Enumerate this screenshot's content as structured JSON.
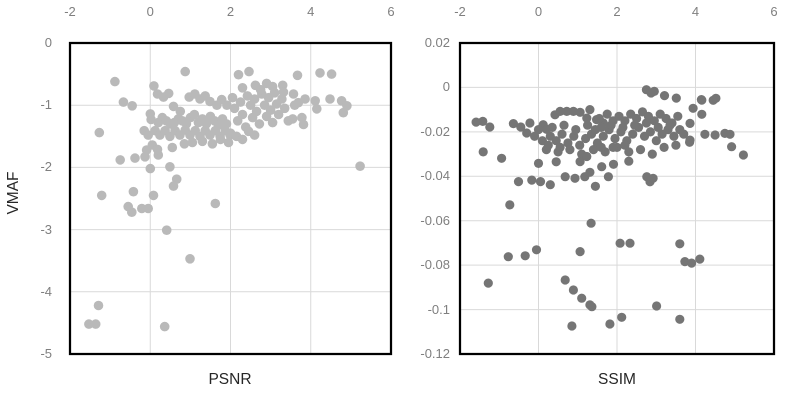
{
  "figure": {
    "background": "#ffffff",
    "grid_color": "#d9d9d9",
    "frame_color": "#000000",
    "tick_color": "#7f7f7f",
    "title_color": "#262626"
  },
  "chart_data": [
    {
      "type": "scatter",
      "title": "",
      "xlabel": "PSNR",
      "ylabel": "VMAF",
      "xlim": [
        -2,
        6
      ],
      "ylim": [
        -5,
        0
      ],
      "x_axis_position": "top",
      "grid": true,
      "legend": "none",
      "point_color": "#b9b9b9",
      "point_radius": 4.8,
      "x_ticks": [
        {
          "v": -2,
          "label": "-2"
        },
        {
          "v": 0,
          "label": "0"
        },
        {
          "v": 2,
          "label": "2"
        },
        {
          "v": 4,
          "label": "4"
        },
        {
          "v": 6,
          "label": "6"
        }
      ],
      "y_ticks": [
        {
          "v": 0,
          "label": "0"
        },
        {
          "v": -1,
          "label": "-1"
        },
        {
          "v": -2,
          "label": "-2"
        },
        {
          "v": -3,
          "label": "-3"
        },
        {
          "v": -4,
          "label": "-4"
        },
        {
          "v": -5,
          "label": "-5"
        }
      ],
      "x_gridlines": [
        0,
        2,
        4
      ],
      "y_gridlines": [
        -1,
        -2,
        -3,
        -4
      ],
      "points": [
        [
          -1.53,
          -4.52
        ],
        [
          -1.36,
          -4.52
        ],
        [
          -1.29,
          -4.22
        ],
        [
          0.36,
          -4.56
        ],
        [
          0.99,
          -3.47
        ],
        [
          0.41,
          -3.01
        ],
        [
          -0.55,
          -2.63
        ],
        [
          -0.46,
          -2.72
        ],
        [
          -0.21,
          -2.66
        ],
        [
          -0.05,
          -2.66
        ],
        [
          1.62,
          -2.58
        ],
        [
          -1.21,
          -2.45
        ],
        [
          -0.42,
          -2.39
        ],
        [
          0.08,
          -2.45
        ],
        [
          -0.75,
          -1.88
        ],
        [
          -0.38,
          -1.85
        ],
        [
          -0.13,
          -1.83
        ],
        [
          0.2,
          -1.8
        ],
        [
          0.0,
          -2.02
        ],
        [
          0.49,
          -1.99
        ],
        [
          0.66,
          -2.19
        ],
        [
          0.58,
          -2.3
        ],
        [
          5.23,
          -1.98
        ],
        [
          -1.27,
          -1.44
        ],
        [
          -0.67,
          -0.95
        ],
        [
          -0.45,
          -1.01
        ],
        [
          -0.88,
          -0.62
        ],
        [
          0.87,
          -0.46
        ],
        [
          2.2,
          -0.51
        ],
        [
          2.46,
          -0.46
        ],
        [
          3.67,
          -0.52
        ],
        [
          4.23,
          -0.48
        ],
        [
          4.52,
          -0.5
        ],
        [
          4.77,
          -0.93
        ],
        [
          4.9,
          -1.01
        ],
        [
          4.81,
          -1.12
        ],
        [
          0.09,
          -0.69
        ],
        [
          0.18,
          -0.82
        ],
        [
          0.33,
          -0.87
        ],
        [
          0.46,
          -0.81
        ],
        [
          0.58,
          -1.02
        ],
        [
          0.75,
          -1.1
        ],
        [
          0.97,
          -0.87
        ],
        [
          1.11,
          -0.82
        ],
        [
          1.24,
          -0.9
        ],
        [
          1.37,
          -0.85
        ],
        [
          1.49,
          -0.94
        ],
        [
          1.66,
          -1.0
        ],
        [
          1.78,
          -0.91
        ],
        [
          1.91,
          -1.0
        ],
        [
          0.0,
          -1.14
        ],
        [
          0.02,
          -1.23
        ],
        [
          0.3,
          -1.2
        ],
        [
          0.2,
          -1.28
        ],
        [
          0.4,
          -1.25
        ],
        [
          0.5,
          -1.3
        ],
        [
          0.6,
          -1.28
        ],
        [
          0.7,
          -1.22
        ],
        [
          0.8,
          -1.25
        ],
        [
          0.9,
          -1.3
        ],
        [
          1.0,
          -1.2
        ],
        [
          1.1,
          -1.15
        ],
        [
          1.2,
          -1.28
        ],
        [
          1.3,
          -1.22
        ],
        [
          1.4,
          -1.3
        ],
        [
          1.5,
          -1.18
        ],
        [
          1.6,
          -1.25
        ],
        [
          1.7,
          -1.32
        ],
        [
          1.8,
          -1.22
        ],
        [
          1.9,
          -1.3
        ],
        [
          -0.15,
          -1.41
        ],
        [
          -0.05,
          -1.48
        ],
        [
          0.12,
          -1.41
        ],
        [
          0.24,
          -1.48
        ],
        [
          0.37,
          -1.41
        ],
        [
          0.49,
          -1.5
        ],
        [
          0.62,
          -1.41
        ],
        [
          0.74,
          -1.48
        ],
        [
          0.87,
          -1.4
        ],
        [
          0.99,
          -1.48
        ],
        [
          1.12,
          -1.41
        ],
        [
          1.24,
          -1.5
        ],
        [
          1.37,
          -1.41
        ],
        [
          1.49,
          -1.48
        ],
        [
          1.62,
          -1.41
        ],
        [
          1.74,
          -1.5
        ],
        [
          1.87,
          -1.41
        ],
        [
          1.99,
          -1.48
        ],
        [
          0.05,
          -1.64
        ],
        [
          0.18,
          -1.71
        ],
        [
          -0.09,
          -1.72
        ],
        [
          0.55,
          -1.68
        ],
        [
          0.85,
          -1.62
        ],
        [
          1.05,
          -1.6
        ],
        [
          1.3,
          -1.58
        ],
        [
          1.55,
          -1.62
        ],
        [
          1.75,
          -1.55
        ],
        [
          1.95,
          -1.6
        ],
        [
          2.05,
          -0.88
        ],
        [
          2.1,
          -1.05
        ],
        [
          2.18,
          -1.25
        ],
        [
          2.25,
          -0.95
        ],
        [
          2.3,
          -1.15
        ],
        [
          2.38,
          -1.35
        ],
        [
          2.42,
          -0.85
        ],
        [
          2.5,
          -1.0
        ],
        [
          2.55,
          -1.2
        ],
        [
          2.6,
          -0.9
        ],
        [
          2.65,
          -1.1
        ],
        [
          2.72,
          -1.3
        ],
        [
          2.78,
          -0.82
        ],
        [
          2.85,
          -1.0
        ],
        [
          2.9,
          -1.18
        ],
        [
          2.95,
          -0.88
        ],
        [
          3.0,
          -1.08
        ],
        [
          3.05,
          -1.28
        ],
        [
          3.1,
          -0.8
        ],
        [
          3.15,
          -0.98
        ],
        [
          3.2,
          -1.15
        ],
        [
          3.28,
          -0.9
        ],
        [
          3.35,
          -1.05
        ],
        [
          3.44,
          -1.25
        ],
        [
          3.55,
          -1.22
        ],
        [
          3.6,
          -1.0
        ],
        [
          2.0,
          -1.45
        ],
        [
          2.15,
          -1.5
        ],
        [
          2.3,
          -1.55
        ],
        [
          2.45,
          -1.42
        ],
        [
          2.6,
          -1.48
        ],
        [
          2.3,
          -0.72
        ],
        [
          2.62,
          -0.68
        ],
        [
          2.9,
          -0.65
        ],
        [
          3.05,
          -0.7
        ],
        [
          3.3,
          -0.68
        ],
        [
          2.75,
          -0.75
        ],
        [
          3.32,
          -0.79
        ],
        [
          3.57,
          -0.82
        ],
        [
          3.69,
          -0.96
        ],
        [
          3.86,
          -0.9
        ],
        [
          4.11,
          -0.93
        ],
        [
          4.15,
          -1.06
        ],
        [
          4.48,
          -0.9
        ],
        [
          3.78,
          -1.2
        ],
        [
          3.82,
          -1.31
        ]
      ]
    },
    {
      "type": "scatter",
      "title": "",
      "xlabel": "SSIM",
      "ylabel": "",
      "xlim": [
        -2,
        6
      ],
      "ylim": [
        -0.12,
        0.02
      ],
      "x_axis_position": "top",
      "grid": true,
      "legend": "none",
      "point_color": "#757575",
      "point_radius": 4.6,
      "x_ticks": [
        {
          "v": -2,
          "label": "-2"
        },
        {
          "v": 0,
          "label": "0"
        },
        {
          "v": 2,
          "label": "2"
        },
        {
          "v": 4,
          "label": "4"
        },
        {
          "v": 6,
          "label": "6"
        }
      ],
      "y_ticks": [
        {
          "v": 0.02,
          "label": "0.02"
        },
        {
          "v": 0,
          "label": "0"
        },
        {
          "v": -0.02,
          "label": "-0.02"
        },
        {
          "v": -0.04,
          "label": "-0.04"
        },
        {
          "v": -0.06,
          "label": "-0.06"
        },
        {
          "v": -0.08,
          "label": "-0.08"
        },
        {
          "v": -0.1,
          "label": "-0.1"
        },
        {
          "v": -0.12,
          "label": "-0.12"
        }
      ],
      "x_gridlines": [
        0,
        2,
        4
      ],
      "y_gridlines": [
        0,
        -0.02,
        -0.04,
        -0.06,
        -0.08,
        -0.1
      ],
      "points": [
        [
          -1.59,
          -0.0156
        ],
        [
          -1.42,
          -0.0153
        ],
        [
          -1.24,
          -0.0178
        ],
        [
          -1.41,
          -0.029
        ],
        [
          -0.94,
          -0.0319
        ],
        [
          -0.64,
          -0.0163
        ],
        [
          -0.45,
          -0.0178
        ],
        [
          -0.22,
          -0.016
        ],
        [
          -0.3,
          -0.0205
        ],
        [
          2.75,
          -0.001
        ],
        [
          2.87,
          -0.0025
        ],
        [
          2.95,
          -0.0018
        ],
        [
          3.21,
          -0.0037
        ],
        [
          3.51,
          -0.0048
        ],
        [
          4.15,
          -0.0055
        ],
        [
          4.45,
          -0.0058
        ],
        [
          3.94,
          -0.0094
        ],
        [
          4.16,
          -0.0057
        ],
        [
          4.52,
          -0.0049
        ],
        [
          4.16,
          -0.0121
        ],
        [
          3.86,
          -0.0162
        ],
        [
          4.24,
          -0.0211
        ],
        [
          4.5,
          -0.0214
        ],
        [
          4.75,
          -0.0207
        ],
        [
          4.88,
          -0.0211
        ],
        [
          3.85,
          -0.0247
        ],
        [
          4.92,
          -0.0267
        ],
        [
          5.22,
          -0.0304
        ],
        [
          3.86,
          -0.0237
        ],
        [
          0.12,
          -0.0168
        ],
        [
          0.21,
          -0.0189
        ],
        [
          0.42,
          -0.0123
        ],
        [
          0.55,
          -0.0108
        ],
        [
          0.72,
          -0.0108
        ],
        [
          0.89,
          -0.0108
        ],
        [
          1.06,
          -0.0112
        ],
        [
          1.23,
          -0.0138
        ],
        [
          1.31,
          -0.01
        ],
        [
          1.48,
          -0.0145
        ],
        [
          1.65,
          -0.016
        ],
        [
          0.3,
          -0.022
        ],
        [
          0.45,
          -0.024
        ],
        [
          0.6,
          -0.021
        ],
        [
          0.75,
          -0.025
        ],
        [
          0.9,
          -0.022
        ],
        [
          1.05,
          -0.026
        ],
        [
          1.2,
          -0.023
        ],
        [
          1.35,
          -0.021
        ],
        [
          1.5,
          -0.025
        ],
        [
          1.65,
          -0.022
        ],
        [
          1.8,
          -0.019
        ],
        [
          1.95,
          -0.023
        ],
        [
          2.1,
          -0.02
        ],
        [
          2.25,
          -0.024
        ],
        [
          2.4,
          -0.021
        ],
        [
          2.55,
          -0.018
        ],
        [
          2.7,
          -0.022
        ],
        [
          2.85,
          -0.02
        ],
        [
          3.0,
          -0.024
        ],
        [
          3.15,
          -0.021
        ],
        [
          3.3,
          -0.019
        ],
        [
          3.45,
          -0.022
        ],
        [
          0.2,
          -0.028
        ],
        [
          0.5,
          -0.029
        ],
        [
          0.8,
          -0.028
        ],
        [
          1.1,
          -0.03
        ],
        [
          1.4,
          -0.028
        ],
        [
          1.7,
          -0.029
        ],
        [
          2.0,
          -0.027
        ],
        [
          2.3,
          -0.029
        ],
        [
          2.6,
          -0.028
        ],
        [
          2.9,
          -0.03
        ],
        [
          1.55,
          -0.014
        ],
        [
          1.75,
          -0.012
        ],
        [
          1.9,
          -0.015
        ],
        [
          2.05,
          -0.013
        ],
        [
          2.2,
          -0.015
        ],
        [
          2.35,
          -0.012
        ],
        [
          2.5,
          -0.014
        ],
        [
          2.65,
          -0.011
        ],
        [
          2.8,
          -0.013
        ],
        [
          2.95,
          -0.015
        ],
        [
          3.1,
          -0.012
        ],
        [
          3.25,
          -0.014
        ],
        [
          3.4,
          -0.016
        ],
        [
          3.55,
          -0.013
        ],
        [
          0.0,
          -0.019
        ],
        [
          -0.1,
          -0.022
        ],
        [
          0.1,
          -0.024
        ],
        [
          0.35,
          -0.018
        ],
        [
          0.65,
          -0.017
        ],
        [
          0.95,
          -0.019
        ],
        [
          1.25,
          -0.017
        ],
        [
          1.45,
          -0.019
        ],
        [
          1.6,
          -0.018
        ],
        [
          1.85,
          -0.017
        ],
        [
          2.15,
          -0.018
        ],
        [
          2.45,
          -0.017
        ],
        [
          2.75,
          -0.016
        ],
        [
          3.05,
          -0.018
        ],
        [
          3.35,
          -0.017
        ],
        [
          3.6,
          -0.019
        ],
        [
          3.7,
          -0.021
        ],
        [
          3.5,
          -0.026
        ],
        [
          3.2,
          -0.027
        ],
        [
          2.2,
          -0.026
        ],
        [
          1.9,
          -0.027
        ],
        [
          1.6,
          -0.027
        ],
        [
          0.55,
          -0.027
        ],
        [
          0.25,
          -0.026
        ],
        [
          0.68,
          -0.0402
        ],
        [
          0.93,
          -0.0409
        ],
        [
          1.18,
          -0.0402
        ],
        [
          1.31,
          -0.0382
        ],
        [
          1.61,
          -0.0357
        ],
        [
          1.91,
          -0.0346
        ],
        [
          1.78,
          -0.0402
        ],
        [
          2.76,
          -0.0402
        ],
        [
          2.84,
          -0.0425
        ],
        [
          2.92,
          -0.0409
        ],
        [
          1.06,
          -0.0334
        ],
        [
          1.23,
          -0.0311
        ],
        [
          -0.51,
          -0.0424
        ],
        [
          0.0,
          -0.0342
        ],
        [
          0.05,
          -0.0424
        ],
        [
          0.3,
          -0.0438
        ],
        [
          -0.17,
          -0.0417
        ],
        [
          2.3,
          -0.0332
        ],
        [
          0.45,
          -0.0335
        ],
        [
          1.45,
          -0.0445
        ],
        [
          -0.73,
          -0.0529
        ],
        [
          1.34,
          -0.0611
        ],
        [
          -0.77,
          -0.0762
        ],
        [
          -0.34,
          -0.0758
        ],
        [
          -0.05,
          -0.0731
        ],
        [
          1.06,
          -0.0739
        ],
        [
          2.08,
          -0.0701
        ],
        [
          2.33,
          -0.0701
        ],
        [
          3.6,
          -0.0704
        ],
        [
          3.73,
          -0.0784
        ],
        [
          3.9,
          -0.0791
        ],
        [
          4.11,
          -0.0773
        ],
        [
          -1.28,
          -0.0881
        ],
        [
          0.68,
          -0.0867
        ],
        [
          0.89,
          -0.0912
        ],
        [
          1.1,
          -0.0949
        ],
        [
          1.31,
          -0.0979
        ],
        [
          1.36,
          -0.0987
        ],
        [
          3.01,
          -0.0984
        ],
        [
          0.85,
          -0.1074
        ],
        [
          1.82,
          -0.1065
        ],
        [
          2.12,
          -0.1035
        ],
        [
          3.6,
          -0.1044
        ]
      ]
    }
  ]
}
